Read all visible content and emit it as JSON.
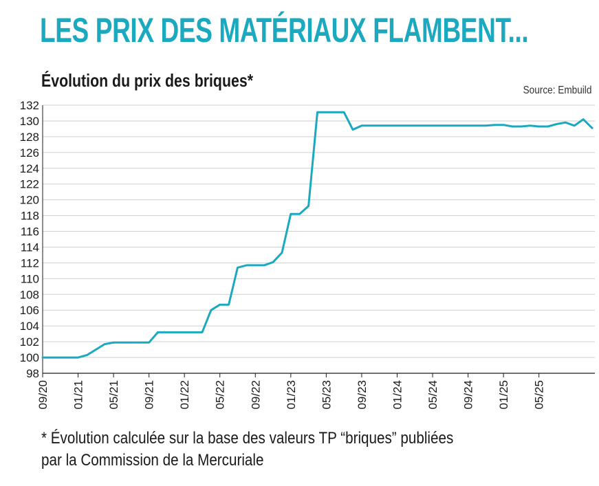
{
  "header": {
    "headline": "LES PRIX DES MATÉRIAUX FLAMBENT...",
    "subtitle": "Évolution du prix des briques*",
    "source": "Source: Embuild"
  },
  "footnote": {
    "line1": "* Évolution calculée sur la base des valeurs TP “briques” publiées",
    "line2": "par la Commission de la Mercuriale"
  },
  "colors": {
    "accent": "#1aa9bf",
    "line": "#1aa9bf",
    "grid": "#cfcfcf"
  },
  "chart_data": {
    "type": "line",
    "title": "Évolution du prix des briques*",
    "xlabel": "",
    "ylabel": "",
    "ylim": [
      98,
      132
    ],
    "yticks": [
      98,
      100,
      102,
      104,
      106,
      108,
      110,
      112,
      114,
      116,
      118,
      120,
      122,
      124,
      126,
      128,
      130,
      132
    ],
    "grid": true,
    "legend": "none",
    "xticks": [
      "09/20",
      "01/21",
      "05/21",
      "09/21",
      "01/22",
      "05/22",
      "09/22",
      "01/23",
      "05/23",
      "09/23",
      "01/24",
      "05/24",
      "09/24",
      "01/25",
      "05/25"
    ],
    "xlim": [
      "09/20",
      "11/25"
    ],
    "series": [
      {
        "name": "",
        "x": [
          "09/20",
          "10/20",
          "11/20",
          "12/20",
          "01/21",
          "02/21",
          "03/21",
          "04/21",
          "05/21",
          "06/21",
          "07/21",
          "08/21",
          "09/21",
          "10/21",
          "11/21",
          "12/21",
          "01/22",
          "02/22",
          "03/22",
          "04/22",
          "05/22",
          "06/22",
          "07/22",
          "08/22",
          "09/22",
          "10/22",
          "11/22",
          "12/22",
          "01/23",
          "02/23",
          "03/23",
          "04/23",
          "05/23",
          "06/23",
          "07/23",
          "08/23",
          "09/23",
          "10/23",
          "11/23",
          "12/23",
          "01/24",
          "02/24",
          "03/24",
          "04/24",
          "05/24",
          "06/24",
          "07/24",
          "08/24",
          "09/24",
          "10/24",
          "11/24",
          "12/24",
          "01/25",
          "02/25",
          "03/25",
          "04/25",
          "05/25",
          "06/25",
          "07/25",
          "08/25",
          "09/25",
          "10/25",
          "11/25"
        ],
        "values": [
          100.0,
          100.0,
          100.0,
          100.0,
          100.0,
          100.3,
          101.0,
          101.7,
          101.9,
          101.9,
          101.9,
          101.9,
          101.9,
          103.2,
          103.2,
          103.2,
          103.2,
          103.2,
          103.2,
          106.0,
          106.7,
          106.7,
          111.4,
          111.7,
          111.7,
          111.7,
          112.1,
          113.3,
          118.2,
          118.2,
          119.2,
          131.1,
          131.1,
          131.1,
          131.1,
          128.9,
          129.4,
          129.4,
          129.4,
          129.4,
          129.4,
          129.4,
          129.4,
          129.4,
          129.4,
          129.4,
          129.4,
          129.4,
          129.4,
          129.4,
          129.4,
          129.5,
          129.5,
          129.3,
          129.3,
          129.4,
          129.3,
          129.3,
          129.6,
          129.8,
          129.4,
          130.2,
          129.1
        ]
      }
    ]
  }
}
